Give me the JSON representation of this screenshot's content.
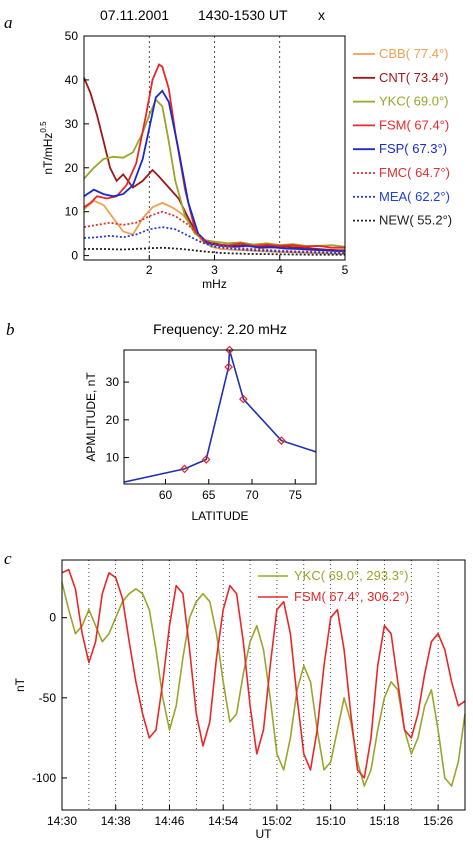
{
  "panel_a": {
    "letter": "a",
    "title_date": "07.11.2001",
    "title_time": "1430-1530 UT",
    "title_comp": "x"
  },
  "panel_b": {
    "letter": "b"
  },
  "panel_c": {
    "letter": "c"
  },
  "chart_data": [
    {
      "type": "line",
      "xlabel": "mHz",
      "ylabel": "nT/mHz",
      "ylabel_sup": "0.5",
      "xlim": [
        1.0,
        5.0
      ],
      "ylim": [
        -1,
        50
      ],
      "xticks": [
        2,
        3,
        4,
        5
      ],
      "yticks": [
        0,
        10,
        20,
        30,
        40,
        50
      ],
      "vgrid": [
        2,
        3,
        4
      ],
      "legend_position": "right",
      "series": [
        {
          "name": "CBB( 77.4°)",
          "color": "#f0a050",
          "dash": "",
          "x": [
            1.0,
            1.15,
            1.3,
            1.45,
            1.6,
            1.75,
            1.9,
            2.05,
            2.2,
            2.35,
            2.5,
            2.65,
            2.8,
            2.95,
            3.1,
            3.3,
            3.5,
            3.7,
            3.9,
            4.1,
            4.3,
            4.5,
            4.7,
            4.9,
            5.0
          ],
          "y": [
            10.5,
            12.5,
            11.5,
            8.5,
            5.5,
            4.8,
            8.5,
            11,
            12,
            11,
            9.5,
            7,
            3.5,
            2,
            1.5,
            1.3,
            1.2,
            1.0,
            0.9,
            0.8,
            0.7,
            0.6,
            0.5,
            0.4,
            0.4
          ]
        },
        {
          "name": "CNT( 73.4°)",
          "color": "#a01818",
          "dash": "",
          "x": [
            1.0,
            1.1,
            1.2,
            1.3,
            1.4,
            1.5,
            1.6,
            1.75,
            1.9,
            2.05,
            2.15,
            2.3,
            2.45,
            2.6,
            2.75,
            2.9,
            3.1,
            3.3,
            3.5,
            3.7,
            3.9,
            4.1,
            4.3,
            4.5,
            4.7,
            4.9,
            5.0
          ],
          "y": [
            40.5,
            37,
            32,
            26,
            20,
            17,
            18.5,
            15.5,
            17,
            19.5,
            18,
            15.5,
            13,
            8.5,
            4.5,
            3,
            2.5,
            2.2,
            2.5,
            2,
            2.2,
            2,
            1.8,
            1.6,
            1.4,
            1.2,
            1.2
          ]
        },
        {
          "name": "YKC( 69.0°)",
          "color": "#9aa52a",
          "dash": "",
          "x": [
            1.0,
            1.15,
            1.3,
            1.45,
            1.6,
            1.75,
            1.9,
            2.0,
            2.1,
            2.2,
            2.3,
            2.4,
            2.55,
            2.7,
            2.85,
            3.0,
            3.2,
            3.4,
            3.6,
            3.8,
            4.0,
            4.2,
            4.4,
            4.6,
            4.8,
            5.0
          ],
          "y": [
            17.5,
            20,
            22,
            22.5,
            22.3,
            23.5,
            28,
            32,
            35.5,
            34,
            26,
            17,
            9,
            5,
            3.5,
            3.2,
            2.8,
            3,
            2.5,
            2.8,
            2.4,
            2.6,
            2.2,
            2.2,
            2.4,
            2.0
          ]
        },
        {
          "name": "FSM( 67.4°)",
          "color": "#e82828",
          "dash": "",
          "x": [
            1.0,
            1.1,
            1.2,
            1.35,
            1.5,
            1.65,
            1.8,
            1.95,
            2.05,
            2.15,
            2.2,
            2.3,
            2.4,
            2.55,
            2.7,
            2.85,
            3.0,
            3.2,
            3.4,
            3.6,
            3.8,
            4.0,
            4.2,
            4.4,
            4.6,
            4.8,
            5.0
          ],
          "y": [
            11,
            12,
            13.5,
            13,
            13.5,
            16,
            21,
            32,
            40,
            43.5,
            43,
            38,
            28,
            15,
            6,
            3,
            2.5,
            2.3,
            2.8,
            2.2,
            2.5,
            2.2,
            2.4,
            2.0,
            2.2,
            1.8,
            1.8
          ]
        },
        {
          "name": "FSP( 67.3°)",
          "color": "#1a2ad0",
          "dash": "",
          "x": [
            1.0,
            1.15,
            1.3,
            1.45,
            1.6,
            1.75,
            1.9,
            2.0,
            2.1,
            2.2,
            2.3,
            2.45,
            2.6,
            2.75,
            2.9,
            3.1,
            3.3,
            3.5,
            3.7,
            3.9,
            4.1,
            4.3,
            4.5,
            4.7,
            4.9,
            5.0
          ],
          "y": [
            13.5,
            15,
            14,
            13.5,
            14,
            16,
            22,
            29,
            36,
            37.5,
            35,
            24,
            12,
            5,
            2.8,
            2.2,
            2,
            2.2,
            1.8,
            1.9,
            1.6,
            1.5,
            1.3,
            1.2,
            1.0,
            1.0
          ]
        },
        {
          "name": "FMC( 64.7°)",
          "color": "#e03030",
          "dash": "2,2",
          "x": [
            1.0,
            1.2,
            1.4,
            1.6,
            1.8,
            2.0,
            2.2,
            2.4,
            2.6,
            2.8,
            3.0,
            3.3,
            3.6,
            3.9,
            4.2,
            4.5,
            4.8,
            5.0
          ],
          "y": [
            6.5,
            7,
            7.5,
            7,
            7.5,
            9,
            10,
            9,
            7,
            4,
            2.5,
            1.8,
            1.5,
            1.2,
            1.0,
            0.9,
            0.8,
            0.7
          ]
        },
        {
          "name": "MEA( 62.2°)",
          "color": "#2040d8",
          "dash": "2,2",
          "x": [
            1.0,
            1.2,
            1.4,
            1.6,
            1.8,
            2.0,
            2.2,
            2.4,
            2.6,
            2.8,
            3.0,
            3.3,
            3.6,
            3.9,
            4.2,
            4.5,
            4.8,
            5.0
          ],
          "y": [
            4,
            4.2,
            4.5,
            4.2,
            4.8,
            6,
            6.5,
            6,
            4.5,
            3,
            2,
            1.5,
            1.2,
            1.0,
            0.8,
            0.7,
            0.6,
            0.5
          ]
        },
        {
          "name": "NEW( 55.2°)",
          "color": "#202020",
          "dash": "2,2",
          "x": [
            1.0,
            1.3,
            1.6,
            1.9,
            2.2,
            2.5,
            2.8,
            3.1,
            3.5,
            4.0,
            4.5,
            5.0
          ],
          "y": [
            1.5,
            1.5,
            1.4,
            1.6,
            1.8,
            1.5,
            1.0,
            0.6,
            0.4,
            0.3,
            0.2,
            0.2
          ]
        }
      ]
    },
    {
      "type": "line",
      "title": "Frequency: 2.20 mHz",
      "xlabel": "LATITUDE",
      "ylabel": "APMLITUDE, nT",
      "xlim": [
        55.2,
        77.4
      ],
      "ylim": [
        3,
        38.5
      ],
      "xticks": [
        60,
        65,
        70,
        75
      ],
      "yticks": [
        10,
        20,
        30
      ],
      "series": [
        {
          "line_color": "#2030b0",
          "marker_color": "#e02828",
          "marker_shape": "diamond",
          "x": [
            55.2,
            62.2,
            64.7,
            67.3,
            67.4,
            69.0,
            73.4,
            77.4
          ],
          "y": [
            3.5,
            7.0,
            9.5,
            34.0,
            38.5,
            25.5,
            14.5,
            11.5
          ],
          "marker_x": [
            62.2,
            64.7,
            67.3,
            67.4,
            69.0,
            73.4
          ],
          "marker_y": [
            7.0,
            9.5,
            34.0,
            38.5,
            25.5,
            14.5
          ]
        }
      ]
    },
    {
      "type": "line",
      "xlabel": "UT",
      "ylabel": "nT",
      "xlim": [
        14.5,
        15.5
      ],
      "ylim": [
        -120,
        36
      ],
      "xticks": [
        "14:30",
        "14:38",
        "14:46",
        "14:54",
        "15:02",
        "15:10",
        "15:18",
        "15:26"
      ],
      "xtick_hours": [
        14.5,
        14.6333,
        14.7667,
        14.9,
        15.0333,
        15.1667,
        15.3,
        15.4333
      ],
      "yticks": [
        0,
        -50,
        -100
      ],
      "vgrid_hours": [
        14.5667,
        14.6333,
        14.7,
        14.7667,
        14.8333,
        14.9,
        14.9667,
        15.0333,
        15.1,
        15.1667,
        15.2333,
        15.3,
        15.3667,
        15.4333
      ],
      "legend_position": "top-right",
      "series": [
        {
          "name": "YKC( 69.0°, 293.3°)",
          "color": "#9aa52a",
          "x": [
            14.5,
            14.5167,
            14.5333,
            14.55,
            14.5667,
            14.5833,
            14.6,
            14.6167,
            14.6333,
            14.65,
            14.6667,
            14.6833,
            14.7,
            14.7167,
            14.7333,
            14.75,
            14.7667,
            14.7833,
            14.8,
            14.8167,
            14.8333,
            14.85,
            14.8667,
            14.8833,
            14.9,
            14.9167,
            14.9333,
            14.95,
            14.9667,
            14.9833,
            15.0,
            15.0167,
            15.0333,
            15.05,
            15.0667,
            15.0833,
            15.1,
            15.1167,
            15.1333,
            15.15,
            15.1667,
            15.1833,
            15.2,
            15.2167,
            15.2333,
            15.25,
            15.2667,
            15.2833,
            15.3,
            15.3167,
            15.3333,
            15.35,
            15.3667,
            15.3833,
            15.4,
            15.4167,
            15.4333,
            15.45,
            15.4667,
            15.4833,
            15.5
          ],
          "y": [
            22,
            5,
            -10,
            -5,
            5,
            -5,
            -15,
            -10,
            0,
            10,
            15,
            18,
            15,
            5,
            -20,
            -50,
            -70,
            -55,
            -25,
            0,
            10,
            15,
            10,
            -10,
            -40,
            -65,
            -60,
            -35,
            -15,
            -5,
            -20,
            -50,
            -85,
            -95,
            -75,
            -45,
            -30,
            -40,
            -70,
            -95,
            -90,
            -70,
            -50,
            -65,
            -90,
            -105,
            -95,
            -70,
            -50,
            -40,
            -45,
            -70,
            -85,
            -75,
            -55,
            -45,
            -70,
            -100,
            -105,
            -90,
            -60
          ]
        },
        {
          "name": "FSM( 67.4°, 306.2°)",
          "color": "#e82828",
          "x": [
            14.5,
            14.5167,
            14.5333,
            14.55,
            14.5667,
            14.5833,
            14.6,
            14.6167,
            14.6333,
            14.65,
            14.6667,
            14.6833,
            14.7,
            14.7167,
            14.7333,
            14.75,
            14.7667,
            14.7833,
            14.8,
            14.8167,
            14.8333,
            14.85,
            14.8667,
            14.8833,
            14.9,
            14.9167,
            14.9333,
            14.95,
            14.9667,
            14.9833,
            15.0,
            15.0167,
            15.0333,
            15.05,
            15.0667,
            15.0833,
            15.1,
            15.1167,
            15.1333,
            15.15,
            15.1667,
            15.1833,
            15.2,
            15.2167,
            15.2333,
            15.25,
            15.2667,
            15.2833,
            15.3,
            15.3167,
            15.3333,
            15.35,
            15.3667,
            15.3833,
            15.4,
            15.4167,
            15.4333,
            15.45,
            15.4667,
            15.4833,
            15.5
          ],
          "y": [
            28,
            30,
            18,
            -10,
            -28,
            -15,
            15,
            28,
            25,
            12,
            -15,
            -40,
            -60,
            -75,
            -70,
            -40,
            -5,
            20,
            15,
            -20,
            -60,
            -80,
            -65,
            -25,
            5,
            20,
            15,
            -15,
            -55,
            -85,
            -70,
            -30,
            5,
            10,
            -10,
            -50,
            -85,
            -95,
            -70,
            -30,
            0,
            5,
            -20,
            -60,
            -95,
            -100,
            -75,
            -30,
            -5,
            -10,
            -40,
            -70,
            -75,
            -60,
            -35,
            -15,
            -10,
            -20,
            -40,
            -55,
            -52
          ]
        }
      ]
    }
  ]
}
